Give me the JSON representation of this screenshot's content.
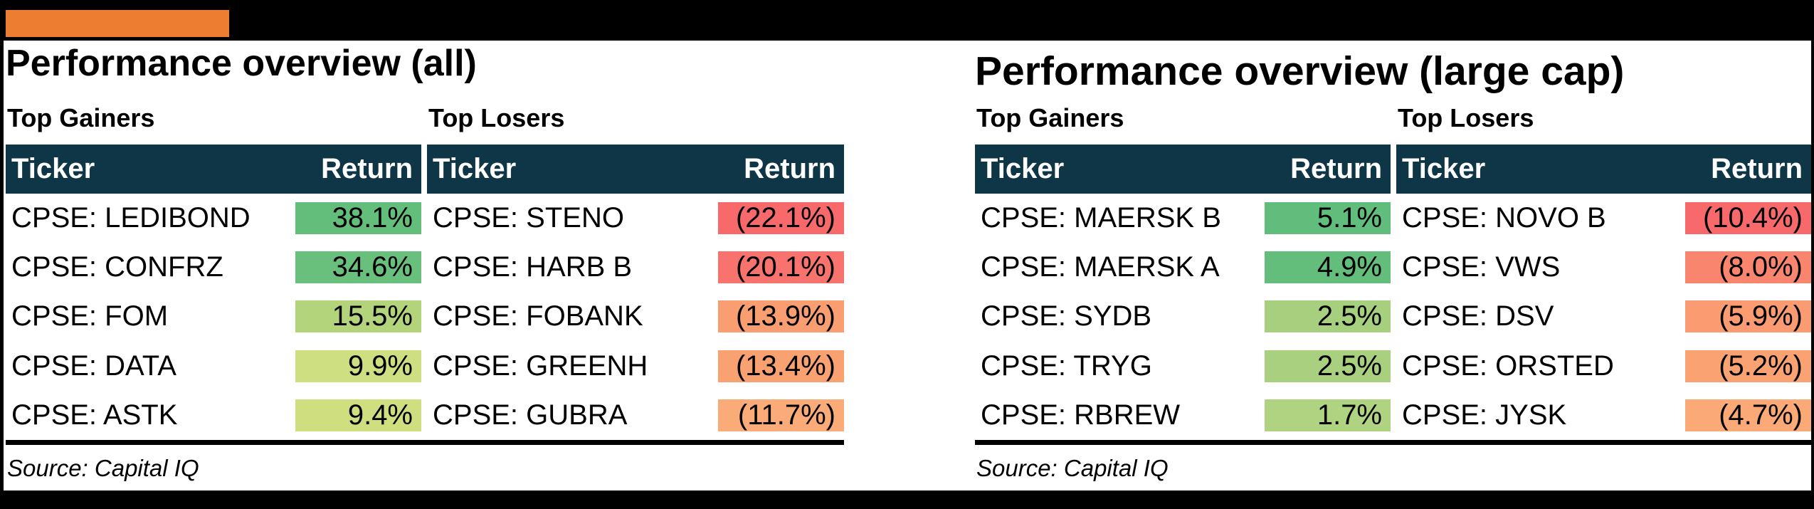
{
  "accent_bar_color": "#ED7D31",
  "header_bg_color": "#0F3647",
  "chart_data": [
    {
      "type": "table",
      "title": "Performance overview (all)",
      "source": "Source: Capital IQ",
      "gainers": {
        "label": "Top Gainers",
        "columns": [
          "Ticker",
          "Return"
        ],
        "col_ticker": "Ticker",
        "col_return": "Return",
        "rows": [
          {
            "ticker": "CPSE: LEDIBOND",
            "return": "38.1%",
            "value": 38.1,
            "color": "#63BE7B"
          },
          {
            "ticker": "CPSE: CONFRZ",
            "return": "34.6%",
            "value": 34.6,
            "color": "#68C07C"
          },
          {
            "ticker": "CPSE: FOM",
            "return": "15.5%",
            "value": 15.5,
            "color": "#B4D47C"
          },
          {
            "ticker": "CPSE: DATA",
            "return": "9.9%",
            "value": 9.9,
            "color": "#CDDF80"
          },
          {
            "ticker": "CPSE: ASTK",
            "return": "9.4%",
            "value": 9.4,
            "color": "#CFDF7F"
          }
        ]
      },
      "losers": {
        "label": "Top Losers",
        "columns": [
          "Ticker",
          "Return"
        ],
        "col_ticker": "Ticker",
        "col_return": "Return",
        "rows": [
          {
            "ticker": "CPSE: STENO",
            "return": "(22.1%)",
            "value": -22.1,
            "color": "#F8696B"
          },
          {
            "ticker": "CPSE: HARB B",
            "return": "(20.1%)",
            "value": -20.1,
            "color": "#F8726E"
          },
          {
            "ticker": "CPSE: FOBANK",
            "return": "(13.9%)",
            "value": -13.9,
            "color": "#F99E71"
          },
          {
            "ticker": "CPSE: GREENH",
            "return": "(13.4%)",
            "value": -13.4,
            "color": "#FAA172"
          },
          {
            "ticker": "CPSE: GUBRA",
            "return": "(11.7%)",
            "value": -11.7,
            "color": "#FBAB77"
          }
        ]
      }
    },
    {
      "type": "table",
      "title": "Performance overview (large cap)",
      "source": "Source: Capital IQ",
      "gainers": {
        "label": "Top Gainers",
        "columns": [
          "Ticker",
          "Return"
        ],
        "col_ticker": "Ticker",
        "col_return": "Return",
        "rows": [
          {
            "ticker": "CPSE: MAERSK B",
            "return": "5.1%",
            "value": 5.1,
            "color": "#60BD7B"
          },
          {
            "ticker": "CPSE: MAERSK A",
            "return": "4.9%",
            "value": 4.9,
            "color": "#63BE7B"
          },
          {
            "ticker": "CPSE: SYDB",
            "return": "2.5%",
            "value": 2.5,
            "color": "#A6D07E"
          },
          {
            "ticker": "CPSE: TRYG",
            "return": "2.5%",
            "value": 2.5,
            "color": "#A8D07F"
          },
          {
            "ticker": "CPSE: RBREW",
            "return": "1.7%",
            "value": 1.7,
            "color": "#AFD381"
          }
        ]
      },
      "losers": {
        "label": "Top Losers",
        "columns": [
          "Ticker",
          "Return"
        ],
        "col_ticker": "Ticker",
        "col_return": "Return",
        "rows": [
          {
            "ticker": "CPSE: NOVO B",
            "return": "(10.4%)",
            "value": -10.4,
            "color": "#F8696B"
          },
          {
            "ticker": "CPSE: VWS",
            "return": "(8.0%)",
            "value": -8.0,
            "color": "#F9856F"
          },
          {
            "ticker": "CPSE: DSV",
            "return": "(5.9%)",
            "value": -5.9,
            "color": "#FA9B71"
          },
          {
            "ticker": "CPSE: ORSTED",
            "return": "(5.2%)",
            "value": -5.2,
            "color": "#FBA273"
          },
          {
            "ticker": "CPSE: JYSK",
            "return": "(4.7%)",
            "value": -4.7,
            "color": "#FBA976"
          }
        ]
      }
    }
  ]
}
